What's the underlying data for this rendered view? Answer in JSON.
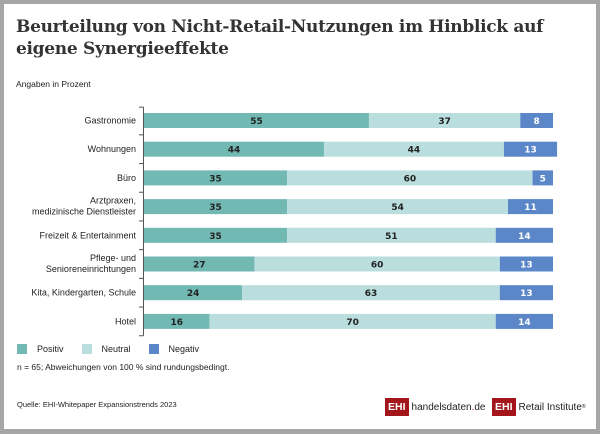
{
  "header": {
    "title": "Beurteilung von Nicht-Retail-Nutzungen im Hinblick auf eigene Synergieeffekte",
    "subtitle": "Angaben in Prozent"
  },
  "chart_data": {
    "type": "bar",
    "orientation": "horizontal",
    "stacked": true,
    "title": "Beurteilung von Nicht-Retail-Nutzungen im Hinblick auf eigene Synergieeffekte",
    "subtitle": "Angaben in Prozent",
    "xlim": [
      0,
      100
    ],
    "grid": false,
    "legend_position": "bottom-left",
    "categories": [
      [
        "Gastronomie"
      ],
      [
        "Wohnungen"
      ],
      [
        "Büro"
      ],
      [
        "Arztpraxen,",
        "medizinische Dienstleister"
      ],
      [
        "Freizeit & Entertainment"
      ],
      [
        "Pflege- und",
        "Senioreneinrichtungen"
      ],
      [
        "Kita, Kindergarten, Schule"
      ],
      [
        "Hotel"
      ]
    ],
    "series": [
      {
        "name": "Positiv",
        "color": "#72b8b3",
        "label_color": "#222222",
        "values": [
          55,
          44,
          35,
          35,
          35,
          27,
          24,
          16
        ]
      },
      {
        "name": "Neutral",
        "color": "#b9dedd",
        "label_color": "#222222",
        "values": [
          37,
          44,
          60,
          54,
          51,
          60,
          63,
          70
        ]
      },
      {
        "name": "Negativ",
        "color": "#5b87c8",
        "label_color": "#ffffff",
        "values": [
          8,
          13,
          5,
          11,
          14,
          13,
          13,
          14
        ]
      }
    ]
  },
  "legend": {
    "items": [
      {
        "label": "Positiv",
        "color": "#72b8b3"
      },
      {
        "label": "Neutral",
        "color": "#b9dedd"
      },
      {
        "label": "Negativ",
        "color": "#5b87c8"
      }
    ]
  },
  "footer": {
    "note": "n = 65; Abweichungen von 100 % sind rundungsbedingt.",
    "source": "Quelle: EHI-Whitepaper Expansionstrends 2023",
    "logo1": {
      "box": "EHI",
      "text_main": "handelsdaten",
      "text_dot": ".",
      "text_tld": "de"
    },
    "logo2": {
      "box": "EHI",
      "text": "Retail Institute",
      "reg": "®"
    },
    "brand_color": "#a3171c"
  }
}
